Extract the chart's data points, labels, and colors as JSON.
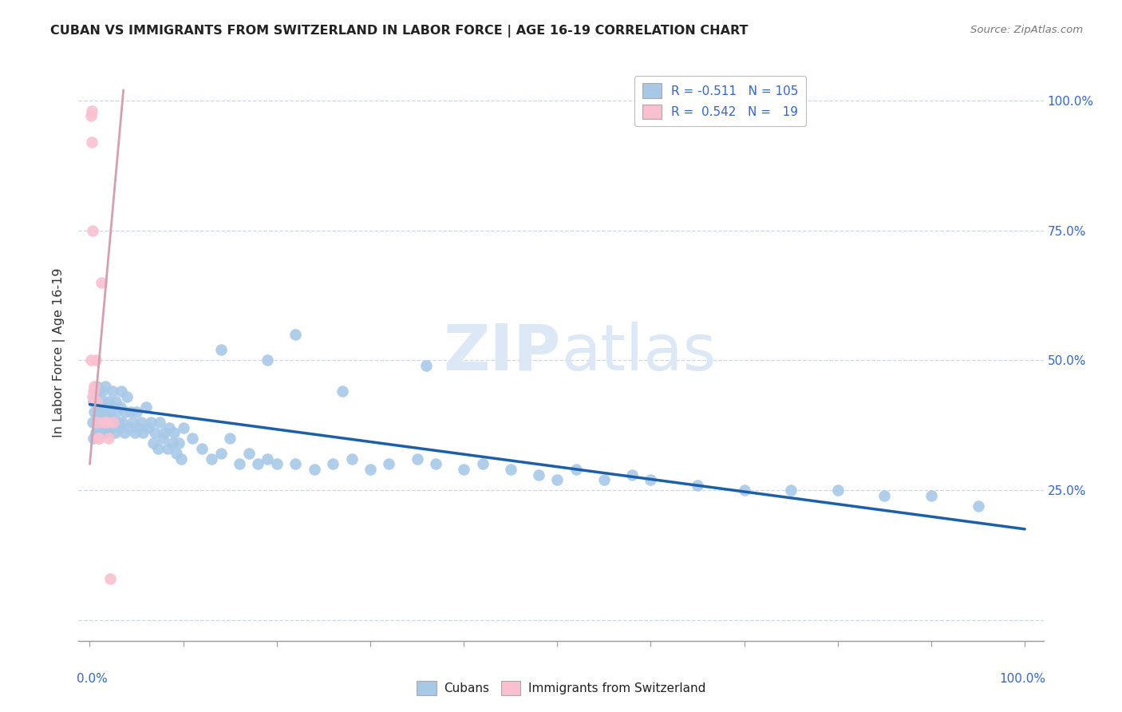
{
  "title": "CUBAN VS IMMIGRANTS FROM SWITZERLAND IN LABOR FORCE | AGE 16-19 CORRELATION CHART",
  "source": "Source: ZipAtlas.com",
  "ylabel": "In Labor Force | Age 16-19",
  "yticks_labels": [
    "",
    "25.0%",
    "50.0%",
    "75.0%",
    "100.0%"
  ],
  "ytick_vals": [
    0.0,
    0.25,
    0.5,
    0.75,
    1.0
  ],
  "blue_color": "#a8c8e8",
  "blue_edge_color": "#7bafd4",
  "pink_color": "#f9c0d0",
  "pink_edge_color": "#f48fb1",
  "trendline_blue_color": "#1a5fa8",
  "trendline_pink_color": "#d4a0b0",
  "watermark_color": "#dce8f5",
  "blue_R": -0.511,
  "blue_N": 105,
  "pink_R": 0.542,
  "pink_N": 19,
  "blue_scatter_x": [
    0.003,
    0.004,
    0.004,
    0.005,
    0.006,
    0.006,
    0.007,
    0.007,
    0.008,
    0.008,
    0.009,
    0.009,
    0.01,
    0.01,
    0.011,
    0.012,
    0.013,
    0.014,
    0.015,
    0.016,
    0.017,
    0.018,
    0.019,
    0.02,
    0.021,
    0.022,
    0.023,
    0.024,
    0.025,
    0.026,
    0.027,
    0.028,
    0.029,
    0.03,
    0.032,
    0.033,
    0.034,
    0.035,
    0.037,
    0.038,
    0.04,
    0.042,
    0.044,
    0.046,
    0.048,
    0.05,
    0.052,
    0.055,
    0.057,
    0.06,
    0.063,
    0.065,
    0.068,
    0.07,
    0.073,
    0.075,
    0.078,
    0.08,
    0.083,
    0.085,
    0.088,
    0.09,
    0.093,
    0.095,
    0.098,
    0.1,
    0.11,
    0.12,
    0.13,
    0.14,
    0.15,
    0.16,
    0.17,
    0.18,
    0.19,
    0.2,
    0.22,
    0.24,
    0.26,
    0.28,
    0.3,
    0.32,
    0.35,
    0.37,
    0.4,
    0.42,
    0.45,
    0.48,
    0.5,
    0.52,
    0.55,
    0.58,
    0.6,
    0.65,
    0.7,
    0.75,
    0.8,
    0.85,
    0.9,
    0.95,
    0.14,
    0.19,
    0.22,
    0.27,
    0.36
  ],
  "blue_scatter_y": [
    0.38,
    0.42,
    0.35,
    0.4,
    0.44,
    0.36,
    0.45,
    0.38,
    0.42,
    0.39,
    0.44,
    0.4,
    0.41,
    0.36,
    0.38,
    0.4,
    0.44,
    0.38,
    0.42,
    0.36,
    0.45,
    0.4,
    0.37,
    0.42,
    0.38,
    0.4,
    0.37,
    0.44,
    0.41,
    0.38,
    0.36,
    0.42,
    0.4,
    0.38,
    0.37,
    0.41,
    0.44,
    0.38,
    0.36,
    0.4,
    0.43,
    0.37,
    0.4,
    0.38,
    0.36,
    0.4,
    0.37,
    0.38,
    0.36,
    0.41,
    0.37,
    0.38,
    0.34,
    0.36,
    0.33,
    0.38,
    0.35,
    0.36,
    0.33,
    0.37,
    0.34,
    0.36,
    0.32,
    0.34,
    0.31,
    0.37,
    0.35,
    0.33,
    0.31,
    0.32,
    0.35,
    0.3,
    0.32,
    0.3,
    0.31,
    0.3,
    0.3,
    0.29,
    0.3,
    0.31,
    0.29,
    0.3,
    0.31,
    0.3,
    0.29,
    0.3,
    0.29,
    0.28,
    0.27,
    0.29,
    0.27,
    0.28,
    0.27,
    0.26,
    0.25,
    0.25,
    0.25,
    0.24,
    0.24,
    0.22,
    0.52,
    0.5,
    0.55,
    0.44,
    0.49
  ],
  "pink_scatter_x": [
    0.001,
    0.002,
    0.002,
    0.003,
    0.004,
    0.005,
    0.006,
    0.007,
    0.008,
    0.009,
    0.01,
    0.012,
    0.015,
    0.018,
    0.02,
    0.022,
    0.025,
    0.001,
    0.003
  ],
  "pink_scatter_y": [
    0.97,
    0.98,
    0.92,
    0.75,
    0.44,
    0.45,
    0.5,
    0.42,
    0.38,
    0.35,
    0.35,
    0.65,
    0.38,
    0.38,
    0.35,
    0.08,
    0.38,
    0.5,
    0.43
  ],
  "blue_trend_x0": 0.0,
  "blue_trend_x1": 1.0,
  "blue_trend_y0": 0.415,
  "blue_trend_y1": 0.175,
  "pink_trend_x0": 0.0,
  "pink_trend_x1": 0.036,
  "pink_trend_y0": 0.3,
  "pink_trend_y1": 1.02,
  "xlim": [
    -0.012,
    1.02
  ],
  "ylim": [
    -0.04,
    1.07
  ],
  "background_color": "#ffffff",
  "grid_color": "#c8d8e8",
  "legend_border_color": "#bbbbbb",
  "legend_blue_color": "#a8c8e8",
  "legend_pink_color": "#f9c0d0"
}
